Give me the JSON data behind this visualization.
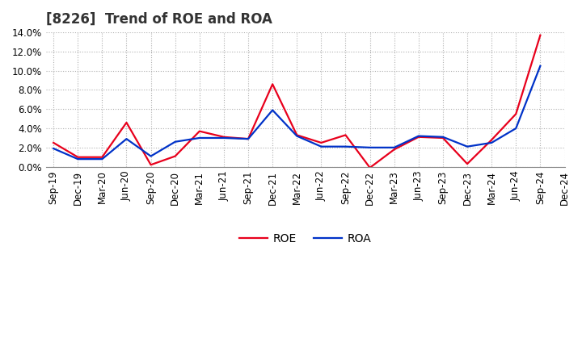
{
  "title": "[8226]  Trend of ROE and ROA",
  "x_labels": [
    "Sep-19",
    "Dec-19",
    "Mar-20",
    "Jun-20",
    "Sep-20",
    "Dec-20",
    "Mar-21",
    "Jun-21",
    "Sep-21",
    "Dec-21",
    "Mar-22",
    "Jun-22",
    "Sep-22",
    "Dec-22",
    "Mar-23",
    "Jun-23",
    "Sep-23",
    "Dec-23",
    "Mar-24",
    "Jun-24",
    "Sep-24",
    "Dec-24"
  ],
  "roe": [
    2.5,
    1.0,
    1.0,
    4.6,
    0.2,
    1.1,
    3.7,
    3.1,
    2.9,
    8.6,
    3.3,
    2.5,
    3.3,
    -0.1,
    1.8,
    3.1,
    3.0,
    0.3,
    2.8,
    5.5,
    13.7,
    null
  ],
  "roa": [
    1.9,
    0.8,
    0.8,
    2.9,
    1.1,
    2.6,
    3.0,
    3.0,
    2.9,
    5.9,
    3.2,
    2.1,
    2.1,
    2.0,
    2.0,
    3.2,
    3.1,
    2.1,
    2.5,
    4.0,
    10.5,
    null
  ],
  "roe_color": "#e8001c",
  "roa_color": "#0032c8",
  "background_color": "#ffffff",
  "grid_color": "#b0b0b0",
  "ylim": [
    0.0,
    14.0
  ],
  "yticks": [
    0.0,
    2.0,
    4.0,
    6.0,
    8.0,
    10.0,
    12.0,
    14.0
  ],
  "title_fontsize": 12,
  "legend_fontsize": 10,
  "tick_fontsize": 8.5
}
